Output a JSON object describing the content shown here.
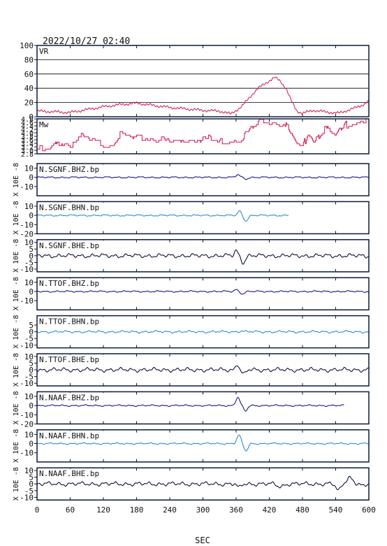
{
  "header": {
    "datetime": "2022/10/27  02:40"
  },
  "colors": {
    "frame": "#0c1a3a",
    "vr": "#d0144a",
    "mw": "#d0144a",
    "bhz": "#16168c",
    "bhn": "#2a8ad6",
    "bhe": "#10103a",
    "grid": "#000000"
  },
  "chart_data": {
    "type": "line",
    "x_axis": {
      "label": "SEC",
      "range": [
        0,
        600
      ],
      "ticks": [
        "0",
        "60",
        "120",
        "180",
        "240",
        "300",
        "360",
        "420",
        "480",
        "540",
        "600"
      ]
    },
    "panels": [
      {
        "name": "VR",
        "tick_labels": [
          "100",
          "80",
          "60",
          "40",
          "20",
          "0"
        ],
        "ylim": [
          0,
          100
        ],
        "grid": true,
        "points": [
          [
            0,
            8
          ],
          [
            30,
            7
          ],
          [
            60,
            6
          ],
          [
            90,
            10
          ],
          [
            120,
            14
          ],
          [
            150,
            17
          ],
          [
            180,
            19
          ],
          [
            210,
            16
          ],
          [
            240,
            13
          ],
          [
            270,
            11
          ],
          [
            300,
            9
          ],
          [
            330,
            8
          ],
          [
            350,
            4
          ],
          [
            370,
            14
          ],
          [
            385,
            28
          ],
          [
            400,
            40
          ],
          [
            415,
            48
          ],
          [
            430,
            55
          ],
          [
            440,
            50
          ],
          [
            450,
            40
          ],
          [
            460,
            22
          ],
          [
            470,
            8
          ],
          [
            480,
            5
          ],
          [
            500,
            9
          ],
          [
            520,
            7
          ],
          [
            545,
            5
          ],
          [
            570,
            11
          ],
          [
            590,
            17
          ],
          [
            600,
            22
          ]
        ]
      },
      {
        "name": "Mw",
        "tick_labels": [
          "4.8",
          "4.6",
          "4.4",
          "4.2",
          "4.0",
          "3.8",
          "3.6",
          "3.4",
          "3.2",
          "3.0",
          "2.8"
        ],
        "ylim": [
          2.8,
          4.3
        ],
        "grid": false,
        "points": [
          [
            0,
            3.0
          ],
          [
            20,
            2.9
          ],
          [
            40,
            3.3
          ],
          [
            60,
            3.2
          ],
          [
            80,
            3.5
          ],
          [
            100,
            3.3
          ],
          [
            130,
            3.2
          ],
          [
            150,
            3.6
          ],
          [
            180,
            3.4
          ],
          [
            210,
            3.5
          ],
          [
            240,
            3.3
          ],
          [
            270,
            3.4
          ],
          [
            300,
            3.5
          ],
          [
            330,
            3.3
          ],
          [
            350,
            3.4
          ],
          [
            370,
            3.5
          ],
          [
            390,
            3.9
          ],
          [
            410,
            4.3
          ],
          [
            430,
            4.2
          ],
          [
            450,
            4.0
          ],
          [
            460,
            3.6
          ],
          [
            470,
            3.1
          ],
          [
            480,
            3.0
          ],
          [
            490,
            3.8
          ],
          [
            500,
            3.4
          ],
          [
            520,
            3.9
          ],
          [
            540,
            3.5
          ],
          [
            560,
            4.1
          ],
          [
            580,
            4.2
          ],
          [
            600,
            4.3
          ]
        ]
      }
    ],
    "waveform_axis_label": "X 10E -8",
    "traces": [
      {
        "name": "N.SGNF.BHZ.bp",
        "component": "BHZ",
        "ylim": [
          -20,
          15
        ],
        "tick_labels": [
          "10",
          "0",
          "-10"
        ],
        "x_end": 600,
        "events": [
          {
            "t": 363,
            "a": 2.8,
            "w": 5
          },
          {
            "t": 378,
            "a": -1.6,
            "w": 5
          }
        ]
      },
      {
        "name": "N.SGNF.BHN.bp",
        "component": "BHN",
        "ylim": [
          -20,
          15
        ],
        "tick_labels": [
          "10",
          "0",
          "-10",
          "-20"
        ],
        "x_end": 455,
        "events": [
          {
            "t": 366,
            "a": 5,
            "w": 4
          },
          {
            "t": 378,
            "a": -6,
            "w": 5
          }
        ]
      },
      {
        "name": "N.SGNF.BHE.bp",
        "component": "BHE",
        "ylim": [
          -12,
          12
        ],
        "tick_labels": [
          "10",
          "5",
          "0",
          "-5",
          "-10"
        ],
        "x_end": 600,
        "events": [
          {
            "t": 360,
            "a": 4,
            "w": 4
          },
          {
            "t": 373,
            "a": -5,
            "w": 5
          }
        ]
      },
      {
        "name": "N.TTOF.BHZ.bp",
        "component": "BHZ",
        "ylim": [
          -20,
          15
        ],
        "tick_labels": [
          "10",
          "0",
          "-10"
        ],
        "x_end": 600,
        "events": [
          {
            "t": 360,
            "a": 2.2,
            "w": 4
          },
          {
            "t": 372,
            "a": -2.5,
            "w": 5
          }
        ]
      },
      {
        "name": "N.TTOF.BHN.bp",
        "component": "BHN",
        "ylim": [
          -12,
          12
        ],
        "tick_labels": [
          "5",
          "0",
          "-5",
          "-10"
        ],
        "x_end": 600,
        "events": [
          {
            "t": 370,
            "a": 0.8,
            "w": 5
          }
        ]
      },
      {
        "name": "N.TTOF.BHE.bp",
        "component": "BHE",
        "ylim": [
          -12,
          12
        ],
        "tick_labels": [
          "10",
          "5",
          "0",
          "-5",
          "-10"
        ],
        "x_end": 600,
        "events": [
          {
            "t": 362,
            "a": 4.5,
            "w": 4
          },
          {
            "t": 374,
            "a": -3.5,
            "w": 5
          }
        ]
      },
      {
        "name": "N.NAAF.BHZ.bp",
        "component": "BHZ",
        "ylim": [
          -20,
          15
        ],
        "tick_labels": [
          "10",
          "0",
          "-10",
          "-20"
        ],
        "x_end": 555,
        "events": [
          {
            "t": 363,
            "a": 9,
            "w": 5
          },
          {
            "t": 377,
            "a": -6,
            "w": 5
          }
        ]
      },
      {
        "name": "N.NAAF.BHN.bp",
        "component": "BHN",
        "ylim": [
          -20,
          15
        ],
        "tick_labels": [
          "10",
          "0",
          "-10"
        ],
        "x_end": 600,
        "events": [
          {
            "t": 365,
            "a": 9,
            "w": 5
          },
          {
            "t": 378,
            "a": -8,
            "w": 5
          }
        ]
      },
      {
        "name": "N.NAAF.BHE.bp",
        "component": "BHE",
        "ylim": [
          -12,
          12
        ],
        "tick_labels": [
          "10",
          "5",
          "0",
          "-5",
          "-10"
        ],
        "x_end": 600,
        "events": [
          {
            "t": 365,
            "a": -3,
            "w": 5
          },
          {
            "t": 440,
            "a": -2,
            "w": 8
          },
          {
            "t": 545,
            "a": -5,
            "w": 6
          },
          {
            "t": 565,
            "a": 5,
            "w": 8
          },
          {
            "t": 590,
            "a": -2,
            "w": 6
          }
        ]
      }
    ]
  }
}
